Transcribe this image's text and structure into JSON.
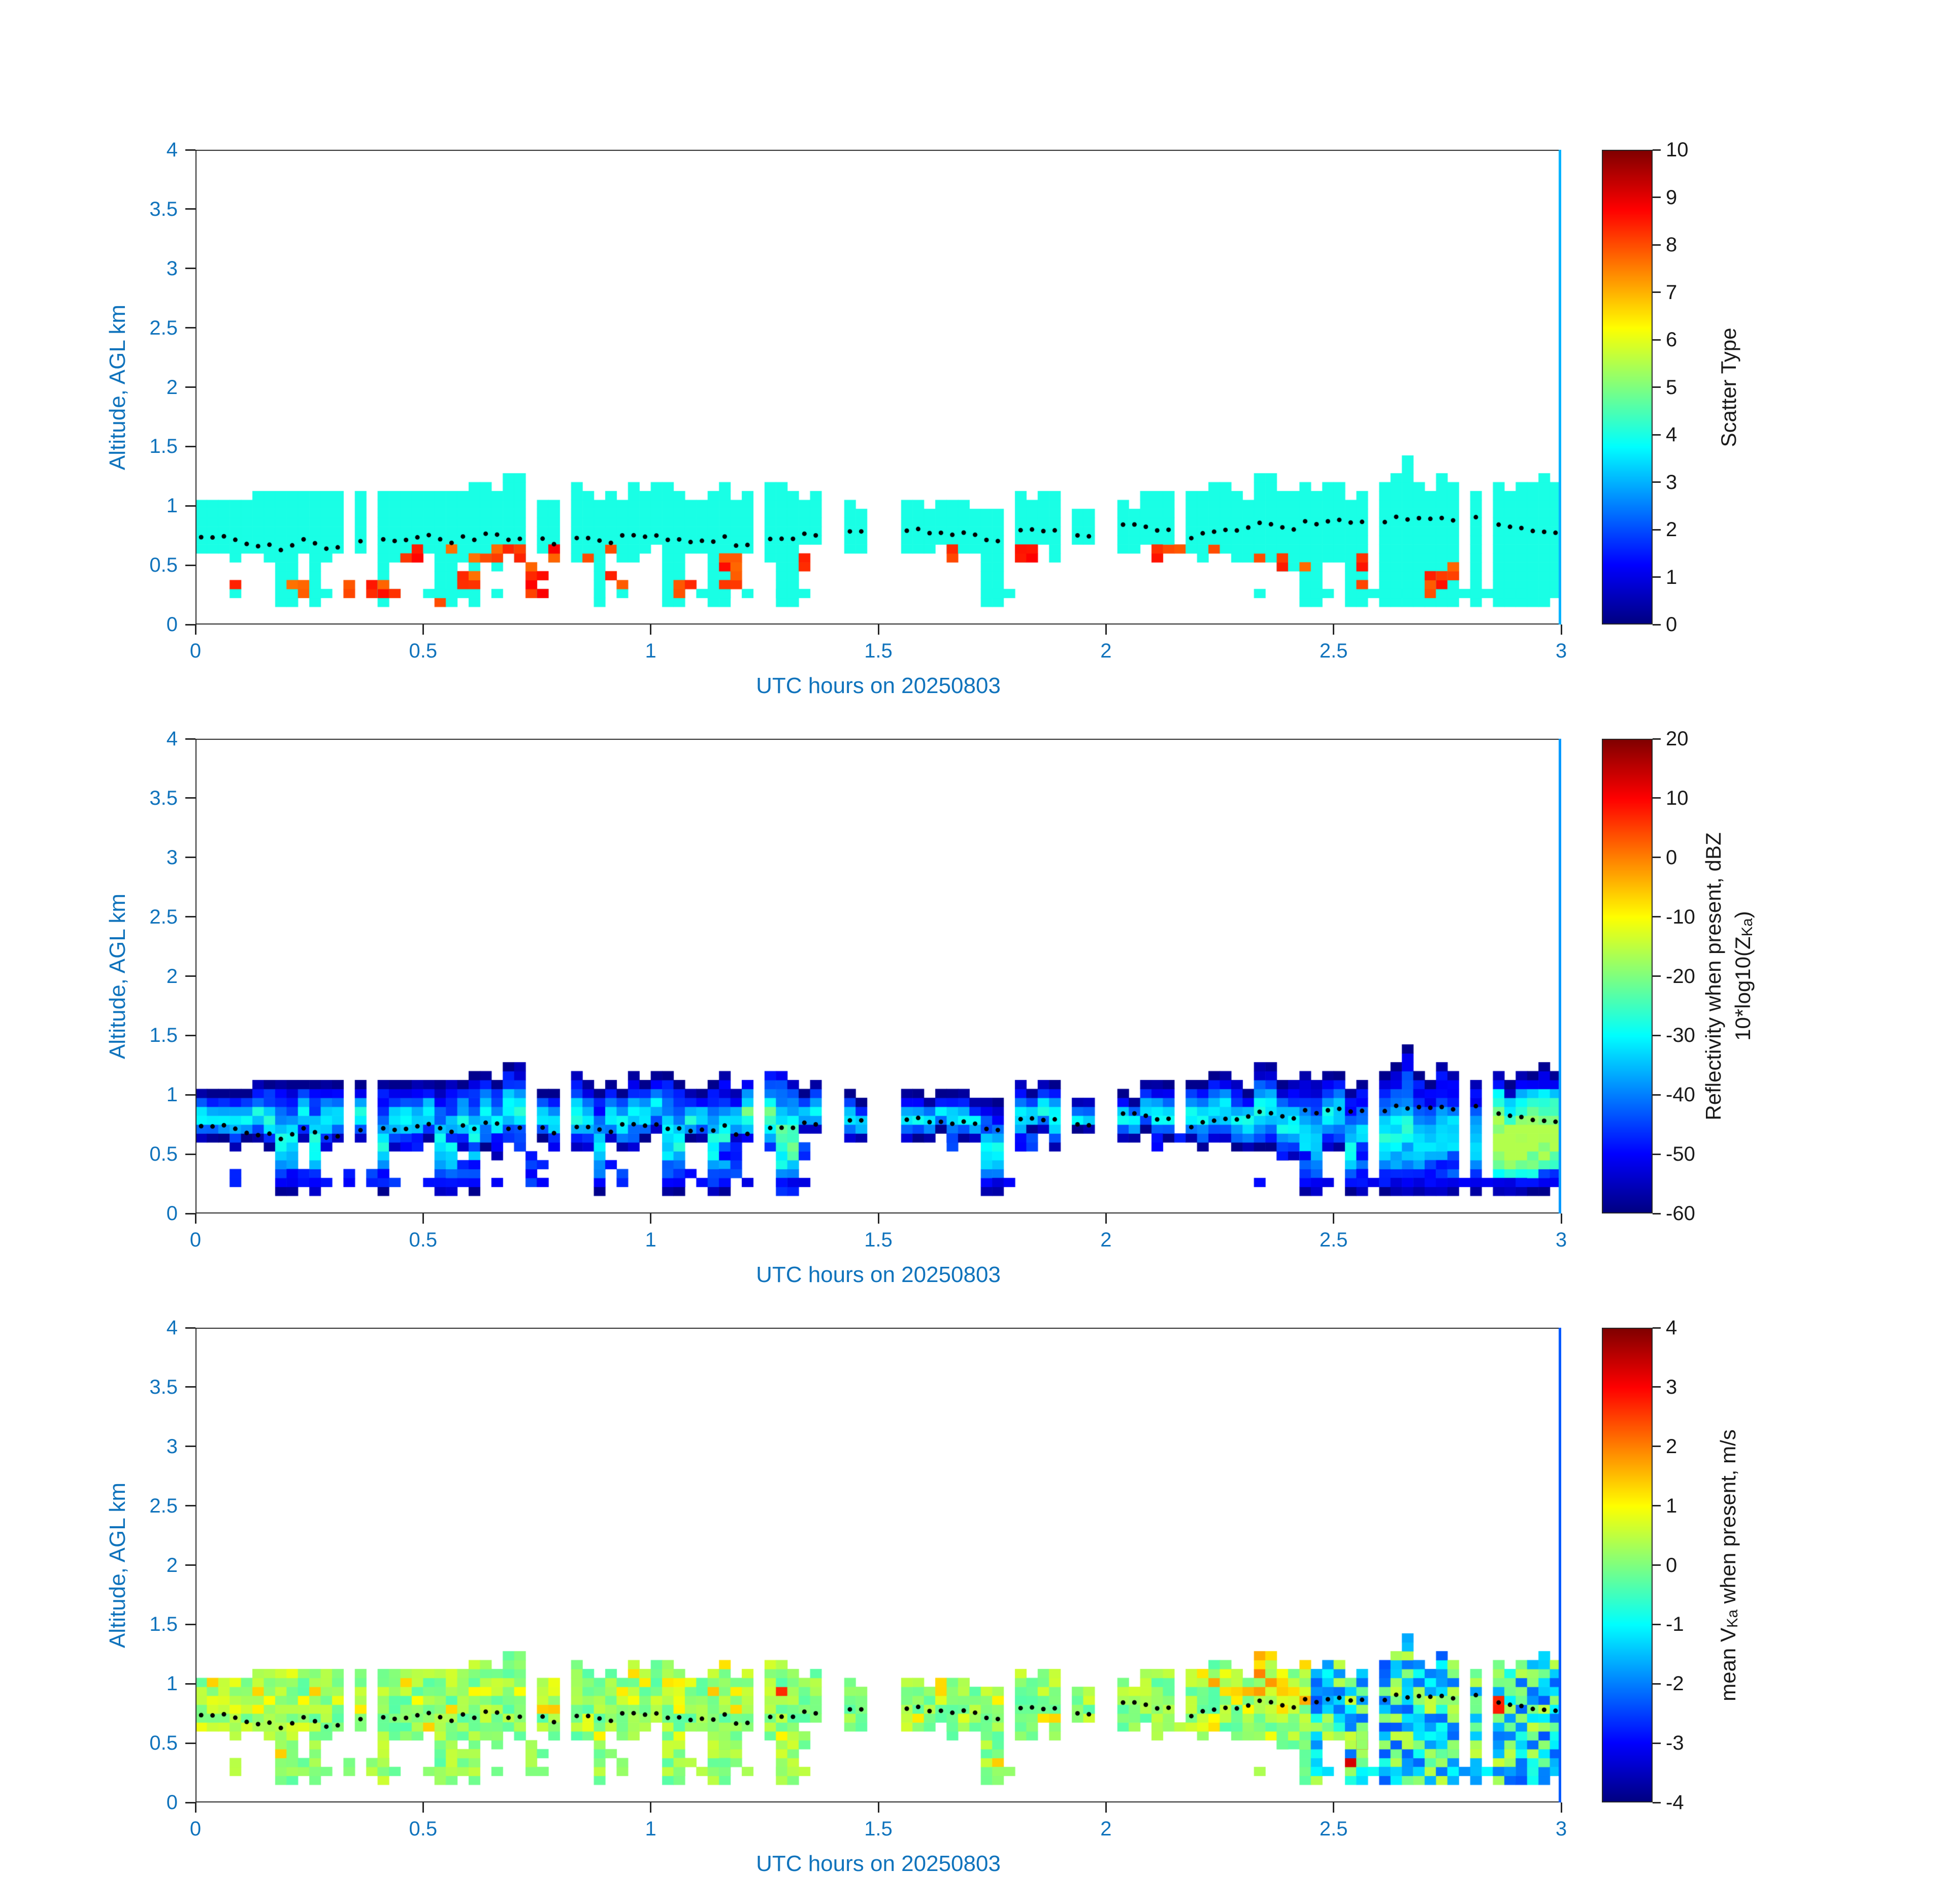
{
  "shared": {
    "xlabel": "UTC hours on 20250803",
    "ylabel": "Altitude, AGL km",
    "x_ticks": [
      0,
      0.5,
      1,
      1.5,
      2,
      2.5,
      3
    ],
    "y_ticks": [
      0,
      0.5,
      1,
      1.5,
      2,
      2.5,
      3,
      3.5,
      4
    ],
    "xlim": [
      0,
      3
    ],
    "ylim": [
      0,
      4
    ]
  },
  "style": {
    "axis_text_color": "#1073BC",
    "colorbar_text_color": "#1a1a1a",
    "spine_color": "#262626",
    "dot_color": "#000000",
    "background": "#ffffff",
    "colormap": "jet"
  },
  "chart_data": {
    "type": "heatmap",
    "x_axis": {
      "label": "UTC hours on 20250803",
      "range": [
        0,
        3
      ],
      "ticks": [
        0,
        0.5,
        1,
        1.5,
        2,
        2.5,
        3
      ]
    },
    "y_axis": {
      "label": "Altitude, AGL km",
      "range": [
        0,
        4
      ],
      "ticks": [
        0,
        0.5,
        1,
        1.5,
        2,
        2.5,
        3,
        3.5,
        4
      ]
    },
    "cloud_columns": {
      "t_start": 0.05,
      "t_step": 0.05,
      "base": [
        0.6,
        0.55,
        0.6,
        0.5,
        0.6,
        0.55,
        0.6,
        0.6,
        0.55,
        0.6,
        0.5,
        0.6,
        0.5,
        0.55,
        0.6,
        0.5,
        0.55,
        0.6,
        0.55,
        0.6,
        0.5,
        0.55,
        0.55,
        0.6,
        0.5,
        0.55,
        0.6,
        null,
        0.6,
        null,
        0.65,
        0.6,
        0.65,
        0.6,
        0.65,
        0.6,
        0.65,
        0.6,
        0.65,
        null,
        0.6,
        0.65,
        0.6,
        0.55,
        0.6,
        0.5,
        0.55,
        0.5,
        0.45,
        0.5,
        0.45,
        0.4,
        0.35,
        0.4,
        0.35,
        0.3,
        0.35,
        0.3,
        0.25,
        0.25
      ],
      "top": [
        1.0,
        0.95,
        1.05,
        1.0,
        1.1,
        1.0,
        1.05,
        1.0,
        1.1,
        1.05,
        1.0,
        1.1,
        1.05,
        1.15,
        1.0,
        1.05,
        1.1,
        1.0,
        1.05,
        1.1,
        1.05,
        1.0,
        1.1,
        1.05,
        1.2,
        1.05,
        1.0,
        null,
        0.95,
        null,
        1.0,
        0.95,
        1.0,
        0.95,
        0.9,
        1.0,
        0.95,
        1.0,
        0.9,
        null,
        0.95,
        1.0,
        1.05,
        1.0,
        1.1,
        1.0,
        1.15,
        1.1,
        1.05,
        1.1,
        1.05,
        1.1,
        1.3,
        1.1,
        1.15,
        1.1,
        1.05,
        1.1,
        1.15,
        1.15
      ],
      "dot_track": [
        0.72,
        0.7,
        0.68,
        0.65,
        0.7,
        0.66,
        0.7,
        0.72,
        0.7,
        0.73,
        0.7,
        0.72,
        0.75,
        0.72,
        0.7,
        0.68,
        0.72,
        0.7,
        0.74,
        0.76,
        0.73,
        0.7,
        0.72,
        0.68,
        0.73,
        0.7,
        0.75,
        null,
        0.78,
        null,
        0.8,
        0.78,
        0.76,
        0.75,
        0.72,
        0.78,
        0.8,
        0.78,
        0.75,
        null,
        0.82,
        0.8,
        0.78,
        0.75,
        0.78,
        0.8,
        0.85,
        0.82,
        0.85,
        0.88,
        0.85,
        0.87,
        0.9,
        0.88,
        0.9,
        0.88,
        0.85,
        0.8,
        0.78,
        0.78
      ]
    },
    "downdraft_columns": [
      0.2,
      0.27,
      0.42,
      0.55,
      0.62,
      0.73,
      0.88,
      1.05,
      1.15,
      1.3,
      1.75,
      2.45,
      2.55,
      2.6,
      2.65,
      2.7,
      2.75,
      2.8,
      2.85,
      2.9,
      2.95
    ],
    "clutter_regions": [
      {
        "t": [
          0.05,
          0.1
        ],
        "density": 0.9
      },
      {
        "t": [
          0.15,
          0.35
        ],
        "density": 0.5
      },
      {
        "t": [
          0.4,
          0.46
        ],
        "density": 0.8
      },
      {
        "t": [
          0.5,
          0.7
        ],
        "density": 0.5
      },
      {
        "t": [
          0.74,
          0.8
        ],
        "density": 0.8
      },
      {
        "t": [
          0.9,
          1.0
        ],
        "density": 0.5
      },
      {
        "t": [
          1.05,
          1.22
        ],
        "density": 0.6
      },
      {
        "t": [
          1.28,
          1.36
        ],
        "density": 0.8
      },
      {
        "t": [
          1.74,
          1.8
        ],
        "density": 0.8
      },
      {
        "t": [
          2.3,
          2.36
        ],
        "density": 0.7
      },
      {
        "t": [
          2.44,
          2.5
        ],
        "density": 0.7
      },
      {
        "t": [
          2.55,
          3.0
        ],
        "density": 0.9
      }
    ],
    "red_regions": [
      {
        "t": [
          0.05,
          0.1
        ],
        "z": [
          0.2,
          0.3
        ],
        "density": 0.8
      },
      {
        "t": [
          0.2,
          0.25
        ],
        "z": [
          0.2,
          0.3
        ],
        "density": 0.8
      },
      {
        "t": [
          0.33,
          0.47
        ],
        "z": [
          0.25,
          0.4
        ],
        "density": 0.8
      },
      {
        "t": [
          0.35,
          0.9
        ],
        "z": [
          0.5,
          0.6
        ],
        "density": 0.45
      },
      {
        "t": [
          0.55,
          0.62
        ],
        "z": [
          0.3,
          0.45
        ],
        "density": 0.8
      },
      {
        "t": [
          0.73,
          0.78
        ],
        "z": [
          0.25,
          0.55
        ],
        "density": 0.8
      },
      {
        "t": [
          0.9,
          0.95
        ],
        "z": [
          0.3,
          0.4
        ],
        "density": 0.8
      },
      {
        "t": [
          1.05,
          1.1
        ],
        "z": [
          0.25,
          0.35
        ],
        "density": 0.8
      },
      {
        "t": [
          1.15,
          1.2
        ],
        "z": [
          0.3,
          0.6
        ],
        "density": 0.8
      },
      {
        "t": [
          1.3,
          1.35
        ],
        "z": [
          0.45,
          0.55
        ],
        "density": 0.8
      },
      {
        "t": [
          1.62,
          1.68
        ],
        "z": [
          0.5,
          0.6
        ],
        "density": 0.6
      },
      {
        "t": [
          1.8,
          1.85
        ],
        "z": [
          0.5,
          0.58
        ],
        "density": 0.8
      },
      {
        "t": [
          2.1,
          2.2
        ],
        "z": [
          0.5,
          0.6
        ],
        "density": 0.5
      },
      {
        "t": [
          2.3,
          2.45
        ],
        "z": [
          0.45,
          0.6
        ],
        "density": 0.4
      },
      {
        "t": [
          2.55,
          2.65
        ],
        "z": [
          0.2,
          0.55
        ],
        "density": 0.7
      },
      {
        "t": [
          2.7,
          2.78
        ],
        "z": [
          0.2,
          0.45
        ],
        "density": 0.6
      },
      {
        "t": [
          2.8,
          2.87
        ],
        "z": [
          0.25,
          0.4
        ],
        "density": 0.5
      }
    ],
    "panels": [
      {
        "name": "scatter-type",
        "colorbar": {
          "clim": [
            0,
            10
          ],
          "ticks": [
            0,
            1,
            2,
            3,
            4,
            5,
            6,
            7,
            8,
            9,
            10
          ],
          "lines": [
            {
              "pre": "Scatter Type",
              "sub": "",
              "post": ""
            }
          ]
        },
        "values": {
          "cloud": 4,
          "surface_clutter": 4,
          "precip_below_base": 8,
          "edge_line": 3.0
        }
      },
      {
        "name": "reflectivity",
        "colorbar": {
          "clim": [
            -60,
            20
          ],
          "ticks": [
            -60,
            -50,
            -40,
            -30,
            -20,
            -10,
            0,
            10,
            20
          ],
          "lines": [
            {
              "pre": "Reflectivity when present, dBZ",
              "sub": "",
              "post": ""
            },
            {
              "pre": "10*log10(Z",
              "sub": "Ka",
              "post": ")"
            }
          ]
        },
        "values": {
          "cloud_range": [
            -55,
            -28
          ],
          "bright_patch": {
            "t": [
              2.82,
              3.0
            ],
            "value": -18
          },
          "light_patch": {
            "t": [
              1.2,
              1.33
            ],
            "value": -27
          },
          "edge_line": -38
        }
      },
      {
        "name": "mean-velocity",
        "colorbar": {
          "clim": [
            -4,
            4
          ],
          "ticks": [
            -4,
            -3,
            -2,
            -1,
            0,
            1,
            2,
            3,
            4
          ],
          "lines": [
            {
              "pre": "mean V",
              "sub": "Ka",
              "post": " when present, m/s"
            }
          ]
        },
        "values": {
          "cloud_range": [
            -0.5,
            1.2
          ],
          "late_range": [
            -2.5,
            -0.3
          ],
          "late_t_start": 2.45,
          "warm_patch": {
            "t": [
              2.2,
              2.45
            ],
            "range": [
              0.8,
              2.0
            ]
          },
          "edge_line": -2.3
        }
      }
    ]
  }
}
